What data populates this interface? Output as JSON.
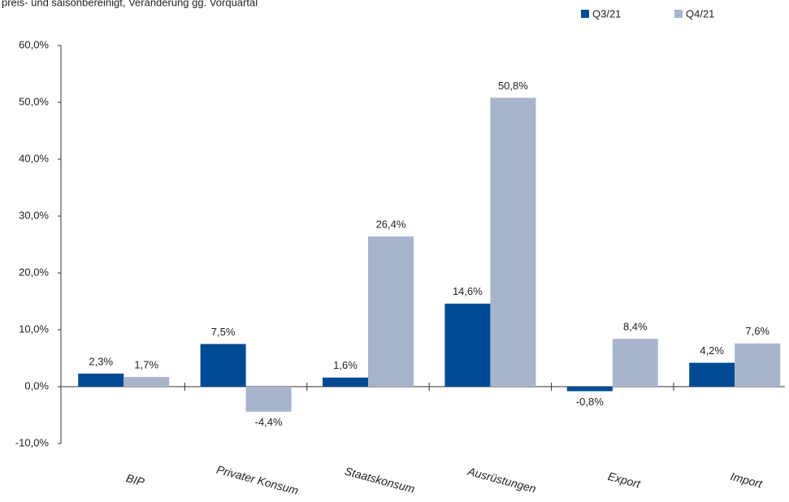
{
  "chart_data": {
    "type": "bar",
    "subtitle": "preis- und saisonbereinigt, Veränderung gg. Vorquartal",
    "categories": [
      "BIP",
      "Privater Konsum",
      "Staatskonsum",
      "Ausrüstungen",
      "Export",
      "Import"
    ],
    "series": [
      {
        "name": "Q3/21",
        "color": "#004a93",
        "values": [
          2.3,
          7.5,
          1.6,
          14.6,
          -0.8,
          4.2
        ],
        "value_labels": [
          "2,3%",
          "7,5%",
          "1,6%",
          "14,6%",
          "-0,8%",
          "4,2%"
        ]
      },
      {
        "name": "Q4/21",
        "color": "#a7b4cb",
        "values": [
          1.7,
          -4.4,
          26.4,
          50.8,
          8.4,
          7.6
        ],
        "value_labels": [
          "1,7%",
          "-4,4%",
          "26,4%",
          "50,8%",
          "8,4%",
          "7,6%"
        ]
      }
    ],
    "ylim": [
      -10,
      60
    ],
    "yticks": [
      {
        "value": -10,
        "label": "-10,0%"
      },
      {
        "value": 0,
        "label": "0,0%"
      },
      {
        "value": 10,
        "label": "10,0%"
      },
      {
        "value": 20,
        "label": "20,0%"
      },
      {
        "value": 30,
        "label": "30,0%"
      },
      {
        "value": 40,
        "label": "40,0%"
      },
      {
        "value": 50,
        "label": "50,0%"
      },
      {
        "value": 60,
        "label": "60,0%"
      }
    ],
    "legend": "top-right"
  }
}
